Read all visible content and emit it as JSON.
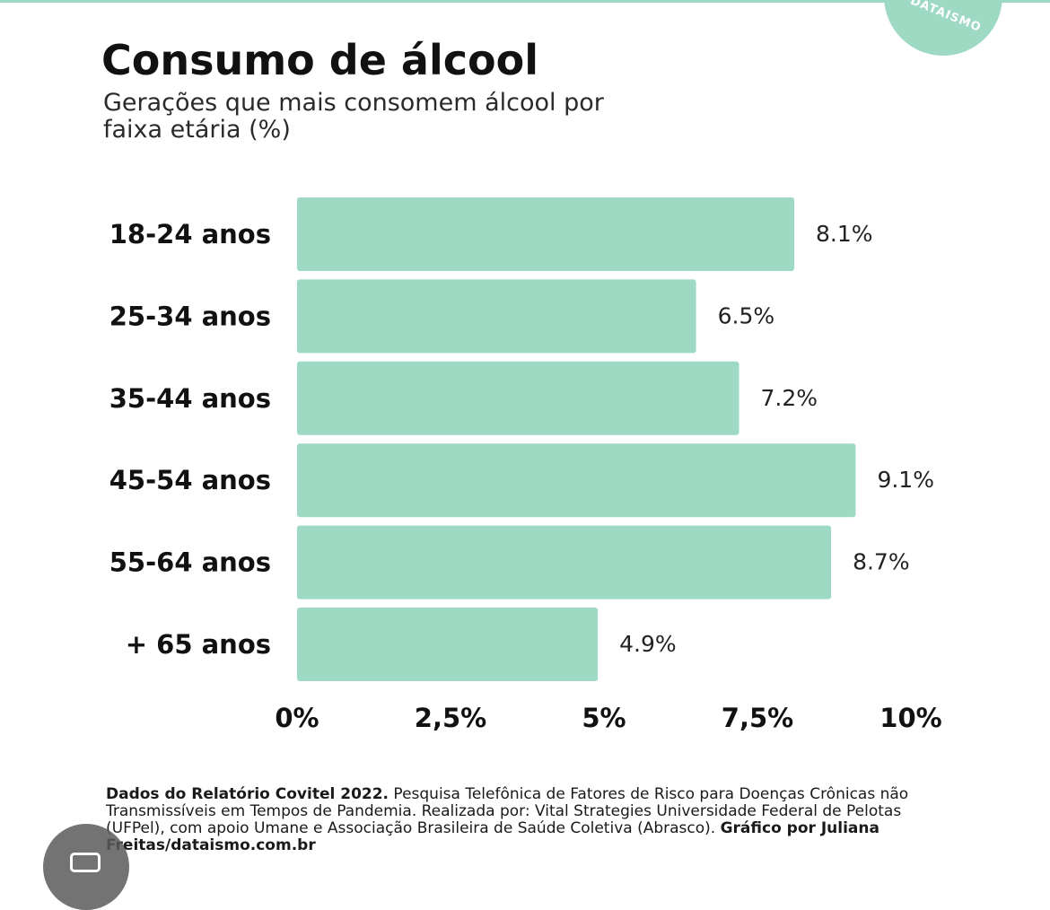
{
  "brand": {
    "logo_text": "DATAISMO",
    "accent": "#9ed9c4"
  },
  "header": {
    "title": "Consumo de álcool",
    "subtitle": "Gerações que mais consomem álcool por faixa etária (%)"
  },
  "chart_data": {
    "type": "bar",
    "orientation": "horizontal",
    "title": "Consumo de álcool",
    "subtitle": "Gerações que mais consomem álcool por faixa etária (%)",
    "categories": [
      "18-24 anos",
      "25-34 anos",
      "35-44 anos",
      "45-54 anos",
      "55-64 anos",
      "+ 65 anos"
    ],
    "values": [
      8.1,
      6.5,
      7.2,
      9.1,
      8.7,
      4.9
    ],
    "value_labels": [
      "8.1%",
      "6.5%",
      "7.2%",
      "9.1%",
      "8.7%",
      "4.9%"
    ],
    "xlim": [
      0,
      10
    ],
    "x_ticks": [
      0,
      2.5,
      5,
      7.5,
      10
    ],
    "x_tick_labels": [
      "0%",
      "2,5%",
      "5%",
      "7,5%",
      "10%"
    ],
    "bar_color": "#9ed9c4",
    "grid": false,
    "legend": "none"
  },
  "footer": {
    "source_bold": "Dados do Relatório Covitel 2022.",
    "source_text": " Pesquisa Telefônica de Fatores de Risco para Doenças Crônicas não Transmissíveis em Tempos de Pandemia. Realizada por: Vital Strategies Universidade Federal de Pelotas (UFPel), com apoio Umane e Associação Brasileira de Saúde Coletiva (Abrasco). ",
    "credit_bold": "Gráfico por Juliana Freitas/dataismo.com.br"
  }
}
